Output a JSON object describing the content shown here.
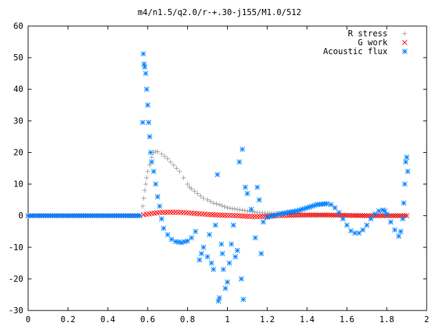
{
  "chart_data": {
    "type": "scatter",
    "title": "m4/n1.5/q2.0/r-+.30-j155/M1.0/512",
    "xlabel": "",
    "ylabel": "",
    "xlim": [
      0,
      2
    ],
    "ylim": [
      -30,
      60
    ],
    "x_ticks": [
      "0",
      "0.2",
      "0.4",
      "0.6",
      "0.8",
      "1",
      "1.2",
      "1.4",
      "1.6",
      "1.8",
      "2"
    ],
    "y_ticks": [
      "60",
      "50",
      "40",
      "30",
      "20",
      "10",
      "0",
      "-10",
      "-20",
      "-30"
    ],
    "grid": false,
    "legend_position": "top-right",
    "series": [
      {
        "name": "R stress",
        "marker": "plus",
        "color": "#a0a0a0",
        "points": [
          [
            0.0,
            0
          ],
          [
            0.1,
            0
          ],
          [
            0.2,
            0
          ],
          [
            0.3,
            0
          ],
          [
            0.4,
            0
          ],
          [
            0.5,
            0
          ],
          [
            0.56,
            0
          ],
          [
            0.575,
            3
          ],
          [
            0.58,
            5.5
          ],
          [
            0.585,
            8
          ],
          [
            0.59,
            10
          ],
          [
            0.595,
            12
          ],
          [
            0.6,
            14
          ],
          [
            0.61,
            16
          ],
          [
            0.62,
            18.5
          ],
          [
            0.63,
            20
          ],
          [
            0.64,
            20.3
          ],
          [
            0.65,
            20.2
          ],
          [
            0.67,
            19.5
          ],
          [
            0.7,
            18
          ],
          [
            0.73,
            16
          ],
          [
            0.76,
            14
          ],
          [
            0.78,
            12
          ],
          [
            0.8,
            10
          ],
          [
            0.81,
            9
          ],
          [
            0.82,
            8.5
          ],
          [
            0.85,
            7
          ],
          [
            0.88,
            5.5
          ],
          [
            0.9,
            5
          ],
          [
            0.93,
            4
          ],
          [
            0.96,
            3.5
          ],
          [
            1.0,
            2.5
          ],
          [
            1.05,
            2
          ],
          [
            1.1,
            1.5
          ],
          [
            1.15,
            1
          ],
          [
            1.2,
            0.8
          ],
          [
            1.3,
            0.5
          ],
          [
            1.4,
            0.3
          ],
          [
            1.5,
            0.2
          ],
          [
            1.6,
            0.1
          ],
          [
            1.7,
            0.05
          ],
          [
            1.8,
            0
          ],
          [
            1.9,
            0
          ]
        ]
      },
      {
        "name": "G work",
        "marker": "cross",
        "color": "#ff0000",
        "points": [
          [
            0.0,
            0
          ],
          [
            0.1,
            0
          ],
          [
            0.2,
            0
          ],
          [
            0.3,
            0
          ],
          [
            0.4,
            0
          ],
          [
            0.5,
            0
          ],
          [
            0.56,
            0
          ],
          [
            0.58,
            0.3
          ],
          [
            0.62,
            0.7
          ],
          [
            0.66,
            1
          ],
          [
            0.7,
            1.1
          ],
          [
            0.74,
            1.1
          ],
          [
            0.78,
            1
          ],
          [
            0.82,
            0.8
          ],
          [
            0.86,
            0.6
          ],
          [
            0.9,
            0.4
          ],
          [
            0.95,
            0.2
          ],
          [
            1.0,
            0.1
          ],
          [
            1.05,
            0
          ],
          [
            1.1,
            -0.2
          ],
          [
            1.15,
            -0.3
          ],
          [
            1.2,
            -0.2
          ],
          [
            1.25,
            0
          ],
          [
            1.3,
            0.1
          ],
          [
            1.4,
            0.2
          ],
          [
            1.5,
            0.2
          ],
          [
            1.6,
            0.1
          ],
          [
            1.7,
            0
          ],
          [
            1.8,
            0
          ],
          [
            1.9,
            0
          ]
        ]
      },
      {
        "name": "Acoustic flux",
        "marker": "star",
        "color": "#0080ff",
        "points": [
          [
            0.0,
            0
          ],
          [
            0.1,
            0
          ],
          [
            0.2,
            0
          ],
          [
            0.3,
            0
          ],
          [
            0.4,
            0
          ],
          [
            0.5,
            0
          ],
          [
            0.56,
            0
          ],
          [
            0.575,
            29.5
          ],
          [
            0.578,
            51.2
          ],
          [
            0.582,
            48
          ],
          [
            0.585,
            47
          ],
          [
            0.59,
            45
          ],
          [
            0.595,
            40
          ],
          [
            0.6,
            35
          ],
          [
            0.605,
            29.5
          ],
          [
            0.61,
            25
          ],
          [
            0.615,
            20
          ],
          [
            0.62,
            17
          ],
          [
            0.63,
            14
          ],
          [
            0.64,
            10
          ],
          [
            0.65,
            6
          ],
          [
            0.66,
            3
          ],
          [
            0.67,
            -1
          ],
          [
            0.68,
            -4
          ],
          [
            0.7,
            -6
          ],
          [
            0.72,
            -7.5
          ],
          [
            0.74,
            -8.2
          ],
          [
            0.77,
            -8.5
          ],
          [
            0.8,
            -8
          ],
          [
            0.82,
            -7
          ],
          [
            0.84,
            -5
          ],
          [
            0.86,
            -14
          ],
          [
            0.87,
            -12
          ],
          [
            0.88,
            -10
          ],
          [
            0.9,
            -13
          ],
          [
            0.91,
            -6
          ],
          [
            0.92,
            -15
          ],
          [
            0.93,
            -17
          ],
          [
            0.94,
            -3
          ],
          [
            0.95,
            13
          ],
          [
            0.955,
            -27
          ],
          [
            0.96,
            -26
          ],
          [
            0.97,
            -9
          ],
          [
            0.975,
            -12
          ],
          [
            0.98,
            -17
          ],
          [
            0.99,
            -23
          ],
          [
            1.0,
            -21
          ],
          [
            1.01,
            -15
          ],
          [
            1.02,
            -9
          ],
          [
            1.03,
            -3
          ],
          [
            1.04,
            -13
          ],
          [
            1.05,
            -11
          ],
          [
            1.06,
            17
          ],
          [
            1.07,
            -20
          ],
          [
            1.075,
            21
          ],
          [
            1.08,
            -26.5
          ],
          [
            1.09,
            9
          ],
          [
            1.1,
            7
          ],
          [
            1.12,
            2
          ],
          [
            1.14,
            -7
          ],
          [
            1.15,
            9
          ],
          [
            1.16,
            5
          ],
          [
            1.17,
            -12
          ],
          [
            1.18,
            -2
          ],
          [
            1.2,
            -0.5
          ],
          [
            1.23,
            0
          ],
          [
            1.26,
            0.5
          ],
          [
            1.3,
            1
          ],
          [
            1.35,
            1.5
          ],
          [
            1.4,
            2.5
          ],
          [
            1.45,
            3.5
          ],
          [
            1.5,
            3.8
          ],
          [
            1.52,
            3.5
          ],
          [
            1.54,
            2.5
          ],
          [
            1.56,
            1
          ],
          [
            1.58,
            -1
          ],
          [
            1.6,
            -3
          ],
          [
            1.62,
            -4.8
          ],
          [
            1.64,
            -5.5
          ],
          [
            1.66,
            -5.5
          ],
          [
            1.68,
            -4.5
          ],
          [
            1.7,
            -3
          ],
          [
            1.72,
            -1
          ],
          [
            1.74,
            0.5
          ],
          [
            1.76,
            1.5
          ],
          [
            1.78,
            1.8
          ],
          [
            1.79,
            1.5
          ],
          [
            1.8,
            0.5
          ],
          [
            1.82,
            -2
          ],
          [
            1.84,
            -4.5
          ],
          [
            1.86,
            -6.5
          ],
          [
            1.87,
            -5
          ],
          [
            1.88,
            -1
          ],
          [
            1.885,
            4
          ],
          [
            1.89,
            10
          ],
          [
            1.895,
            17
          ],
          [
            1.9,
            18.5
          ],
          [
            1.905,
            14
          ]
        ]
      }
    ]
  }
}
